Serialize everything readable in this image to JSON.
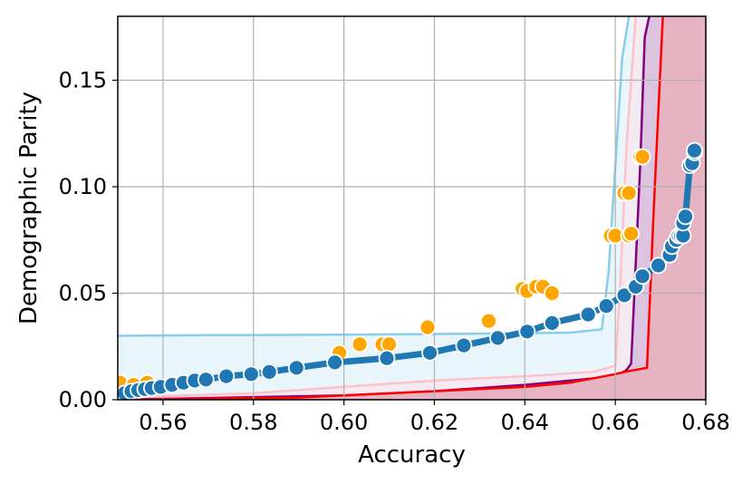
{
  "chart_data": {
    "type": "scatter",
    "title": "",
    "xlabel": "Accuracy",
    "ylabel": "Demographic Parity",
    "xlim": [
      0.55,
      0.68
    ],
    "ylim": [
      0.0,
      0.18
    ],
    "xticks": [
      0.56,
      0.58,
      0.6,
      0.62,
      0.64,
      0.66,
      0.68
    ],
    "xtick_labels": [
      "0.56",
      "0.58",
      "0.60",
      "0.62",
      "0.64",
      "0.66",
      "0.68"
    ],
    "yticks": [
      0.0,
      0.05,
      0.1,
      0.15
    ],
    "ytick_labels": [
      "0.00",
      "0.05",
      "0.10",
      "0.15"
    ],
    "grid": true,
    "legend": "none",
    "regions": [
      {
        "color": "#87ceeb",
        "fill": "#e8f5fb",
        "points": [
          [
            0.55,
            0.03
          ],
          [
            0.57,
            0.0303
          ],
          [
            0.6,
            0.0305
          ],
          [
            0.63,
            0.031
          ],
          [
            0.65,
            0.0315
          ],
          [
            0.657,
            0.033
          ],
          [
            0.6585,
            0.06
          ],
          [
            0.66,
            0.11
          ],
          [
            0.6615,
            0.16
          ],
          [
            0.663,
            0.18
          ]
        ]
      },
      {
        "color": "#ffc0cb",
        "fill": "#f3ebf1",
        "points": [
          [
            0.55,
            0.001
          ],
          [
            0.58,
            0.003
          ],
          [
            0.6,
            0.006
          ],
          [
            0.62,
            0.009
          ],
          [
            0.64,
            0.011
          ],
          [
            0.655,
            0.013
          ],
          [
            0.66,
            0.016
          ],
          [
            0.661,
            0.05
          ],
          [
            0.6625,
            0.12
          ],
          [
            0.6645,
            0.18
          ]
        ]
      },
      {
        "color": "#800080",
        "fill": "#dcc3e0",
        "points": [
          [
            0.55,
            0.0
          ],
          [
            0.6,
            0.002
          ],
          [
            0.62,
            0.004
          ],
          [
            0.64,
            0.007
          ],
          [
            0.655,
            0.01
          ],
          [
            0.66,
            0.011
          ],
          [
            0.661,
            0.012
          ],
          [
            0.6625,
            0.014
          ],
          [
            0.6635,
            0.017
          ],
          [
            0.664,
            0.04
          ],
          [
            0.6655,
            0.11
          ],
          [
            0.6665,
            0.17
          ],
          [
            0.6675,
            0.18
          ]
        ]
      },
      {
        "color": "#ff0000",
        "fill": "#e6b3c3",
        "points": [
          [
            0.55,
            0.0
          ],
          [
            0.59,
            0.001
          ],
          [
            0.62,
            0.004
          ],
          [
            0.64,
            0.006
          ],
          [
            0.65,
            0.008
          ],
          [
            0.66,
            0.012
          ],
          [
            0.662,
            0.013
          ],
          [
            0.667,
            0.015
          ],
          [
            0.6685,
            0.09
          ],
          [
            0.6705,
            0.18
          ]
        ]
      }
    ],
    "series": [
      {
        "color": "#ffa500",
        "marker": "circle",
        "points": [
          [
            0.5505,
            0.008
          ],
          [
            0.5535,
            0.007
          ],
          [
            0.5565,
            0.008
          ],
          [
            0.599,
            0.022
          ],
          [
            0.6035,
            0.026
          ],
          [
            0.6085,
            0.026
          ],
          [
            0.61,
            0.026
          ],
          [
            0.6185,
            0.034
          ],
          [
            0.632,
            0.037
          ],
          [
            0.6395,
            0.052
          ],
          [
            0.6405,
            0.051
          ],
          [
            0.6425,
            0.053
          ],
          [
            0.644,
            0.053
          ],
          [
            0.646,
            0.05
          ],
          [
            0.659,
            0.077
          ],
          [
            0.66,
            0.077
          ],
          [
            0.662,
            0.097
          ],
          [
            0.663,
            0.097
          ],
          [
            0.663,
            0.077
          ],
          [
            0.6635,
            0.078
          ],
          [
            0.6655,
            0.114
          ],
          [
            0.666,
            0.114
          ]
        ]
      },
      {
        "color": "#1f77b4",
        "marker": "circle",
        "connected": true,
        "points": [
          [
            0.5515,
            0.003
          ],
          [
            0.553,
            0.004
          ],
          [
            0.5545,
            0.0045
          ],
          [
            0.556,
            0.005
          ],
          [
            0.5575,
            0.0055
          ],
          [
            0.5595,
            0.006
          ],
          [
            0.562,
            0.007
          ],
          [
            0.5645,
            0.008
          ],
          [
            0.567,
            0.009
          ],
          [
            0.5695,
            0.0095
          ],
          [
            0.574,
            0.011
          ],
          [
            0.5795,
            0.012
          ],
          [
            0.5835,
            0.013
          ],
          [
            0.5895,
            0.015
          ],
          [
            0.598,
            0.0175
          ],
          [
            0.6095,
            0.0195
          ],
          [
            0.619,
            0.022
          ],
          [
            0.6265,
            0.0255
          ],
          [
            0.634,
            0.029
          ],
          [
            0.6405,
            0.032
          ],
          [
            0.646,
            0.036
          ],
          [
            0.654,
            0.04
          ],
          [
            0.658,
            0.044
          ],
          [
            0.662,
            0.049
          ],
          [
            0.6645,
            0.053
          ],
          [
            0.666,
            0.058
          ],
          [
            0.6695,
            0.063
          ],
          [
            0.672,
            0.068
          ],
          [
            0.6725,
            0.072
          ],
          [
            0.6735,
            0.075
          ],
          [
            0.674,
            0.077
          ],
          [
            0.6745,
            0.077
          ],
          [
            0.675,
            0.077
          ],
          [
            0.675,
            0.083
          ],
          [
            0.6755,
            0.086
          ],
          [
            0.6765,
            0.11
          ],
          [
            0.677,
            0.111
          ],
          [
            0.6775,
            0.116
          ],
          [
            0.6775,
            0.117
          ]
        ]
      }
    ]
  }
}
